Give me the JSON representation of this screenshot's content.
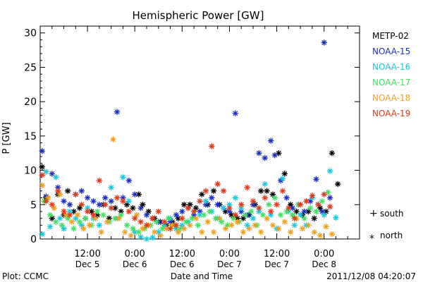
{
  "chart_data": {
    "type": "scatter",
    "title": "Hemispheric Power [GW]",
    "ylabel": "P [GW]",
    "xlabel": "Date and Time",
    "ylim": [
      0,
      31
    ],
    "yticks": [
      0,
      5,
      10,
      15,
      20,
      25,
      30
    ],
    "xlim_hours": [
      0,
      81
    ],
    "xticks": [
      {
        "hour": 12,
        "time": "12:00",
        "date": "Dec 5"
      },
      {
        "hour": 24,
        "time": "0:00",
        "date": "Dec 6"
      },
      {
        "hour": 36,
        "time": "12:00",
        "date": "Dec 6"
      },
      {
        "hour": 48,
        "time": "0:00",
        "date": "Dec 7"
      },
      {
        "hour": 60,
        "time": "12:00",
        "date": "Dec 7"
      },
      {
        "hour": 72,
        "time": "0:00",
        "date": "Dec 8"
      }
    ],
    "footer_left": "Plot: CCMC",
    "footer_right": "2011/12/08 04:20:07",
    "marker_legend": [
      {
        "symbol": "+",
        "label": "south"
      },
      {
        "symbol": "*",
        "label": "north"
      }
    ],
    "series": [
      {
        "name": "METP-02",
        "color": "#000000",
        "points": [
          [
            0.5,
            10.5
          ],
          [
            1.5,
            6
          ],
          [
            3,
            3
          ],
          [
            4.5,
            6.5
          ],
          [
            6,
            3.5
          ],
          [
            7,
            7
          ],
          [
            8.5,
            4
          ],
          [
            10,
            4.5
          ],
          [
            11.5,
            3
          ],
          [
            13,
            4
          ],
          [
            14.5,
            3.5
          ],
          [
            16,
            5
          ],
          [
            17.5,
            3
          ],
          [
            19,
            4.5
          ],
          [
            20.5,
            4
          ],
          [
            22,
            5
          ],
          [
            23.5,
            4.5
          ],
          [
            25,
            6.5
          ],
          [
            26,
            5
          ],
          [
            27.5,
            4
          ],
          [
            29,
            3
          ],
          [
            30.5,
            2.5
          ],
          [
            32,
            2
          ],
          [
            33.5,
            2.5
          ],
          [
            35,
            3
          ],
          [
            36.5,
            5
          ],
          [
            38,
            5
          ],
          [
            39.5,
            4.5
          ],
          [
            41,
            6.5
          ],
          [
            42.5,
            5
          ],
          [
            44,
            7
          ],
          [
            45.5,
            5
          ],
          [
            47,
            4
          ],
          [
            48.5,
            3.5
          ],
          [
            50,
            3
          ],
          [
            51.5,
            3
          ],
          [
            53,
            3.5
          ],
          [
            54.5,
            5
          ],
          [
            56,
            7
          ],
          [
            57.5,
            7
          ],
          [
            59,
            6.5
          ],
          [
            60.5,
            12.5
          ],
          [
            62,
            9.5
          ],
          [
            63.5,
            5
          ],
          [
            65,
            4
          ],
          [
            66.5,
            3.5
          ],
          [
            68,
            4
          ],
          [
            69.5,
            3
          ],
          [
            71,
            4.5
          ],
          [
            72.5,
            4
          ],
          [
            74,
            12.5
          ],
          [
            75.5,
            8
          ]
        ]
      },
      {
        "name": "NOAA-15",
        "color": "#1c2fc4",
        "points": [
          [
            0.5,
            12.8
          ],
          [
            1.5,
            6.2
          ],
          [
            3,
            9.5
          ],
          [
            4.5,
            7.5
          ],
          [
            6,
            5.5
          ],
          [
            7.5,
            5
          ],
          [
            9,
            6.5
          ],
          [
            10.5,
            7
          ],
          [
            12,
            6
          ],
          [
            13.5,
            5.5
          ],
          [
            15,
            5
          ],
          [
            16.5,
            6
          ],
          [
            18,
            5.5
          ],
          [
            19.5,
            18.5
          ],
          [
            21,
            6
          ],
          [
            22.5,
            8.5
          ],
          [
            24,
            6.5
          ],
          [
            25.5,
            4.5
          ],
          [
            27,
            3.5
          ],
          [
            28.5,
            3
          ],
          [
            30,
            2.5
          ],
          [
            31.5,
            2
          ],
          [
            33,
            2.5
          ],
          [
            34.5,
            3.5
          ],
          [
            36,
            4
          ],
          [
            37.5,
            4.5
          ],
          [
            39,
            3.5
          ],
          [
            40.5,
            4
          ],
          [
            42,
            5
          ],
          [
            43.5,
            6
          ],
          [
            45,
            5
          ],
          [
            46.5,
            4.5
          ],
          [
            48,
            4
          ],
          [
            49.5,
            18.3
          ],
          [
            51,
            4
          ],
          [
            52.5,
            3.5
          ],
          [
            54,
            5
          ],
          [
            55.5,
            12.5
          ],
          [
            57,
            11.8
          ],
          [
            58.5,
            14.3
          ],
          [
            59.5,
            12.2
          ],
          [
            61,
            8.5
          ],
          [
            62.5,
            6
          ],
          [
            64,
            4.5
          ],
          [
            65.5,
            5
          ],
          [
            67,
            4
          ],
          [
            68.5,
            5.5
          ],
          [
            70,
            8.7
          ],
          [
            71.5,
            4
          ],
          [
            72,
            28.6
          ],
          [
            73.5,
            6
          ]
        ]
      },
      {
        "name": "NOAA-16",
        "color": "#18c8e0",
        "points": [
          [
            0.5,
            0.7
          ],
          [
            1.5,
            9.8
          ],
          [
            2.5,
            1.8
          ],
          [
            4,
            9
          ],
          [
            5,
            3
          ],
          [
            6,
            1.5
          ],
          [
            7.5,
            4
          ],
          [
            9,
            3
          ],
          [
            10.5,
            2
          ],
          [
            12,
            4.5
          ],
          [
            13.5,
            3
          ],
          [
            15,
            2
          ],
          [
            16.5,
            5
          ],
          [
            18,
            7.5
          ],
          [
            19.5,
            3
          ],
          [
            21,
            9
          ],
          [
            22.5,
            5.5
          ],
          [
            24,
            1
          ],
          [
            25.5,
            0.3
          ],
          [
            27,
            0
          ],
          [
            28.5,
            0.2
          ],
          [
            30,
            1
          ],
          [
            31.5,
            2
          ],
          [
            33,
            3
          ],
          [
            34.5,
            1.5
          ],
          [
            36,
            2
          ],
          [
            37.5,
            2.5
          ],
          [
            39,
            4
          ],
          [
            40.5,
            3.5
          ],
          [
            42,
            5.5
          ],
          [
            43.5,
            4
          ],
          [
            45,
            3
          ],
          [
            46.5,
            4.5
          ],
          [
            48,
            5
          ],
          [
            49.5,
            6
          ],
          [
            51,
            4.5
          ],
          [
            52.5,
            2
          ],
          [
            54,
            3
          ],
          [
            55.5,
            4
          ],
          [
            57,
            8
          ],
          [
            58.5,
            3.5
          ],
          [
            60,
            1.5
          ],
          [
            61.5,
            8.8
          ],
          [
            63,
            4
          ],
          [
            64.5,
            2
          ],
          [
            66,
            3.5
          ],
          [
            67.5,
            2
          ],
          [
            69,
            6
          ],
          [
            70.5,
            5
          ],
          [
            72,
            3.5
          ],
          [
            73.5,
            9.9
          ],
          [
            75,
            3.1
          ]
        ]
      },
      {
        "name": "NOAA-17",
        "color": "#40e060",
        "points": [
          [
            1,
            5.5
          ],
          [
            2.5,
            3.5
          ],
          [
            4,
            2.5
          ],
          [
            5.5,
            2
          ],
          [
            7,
            3
          ],
          [
            8.5,
            1.5
          ],
          [
            10,
            2.5
          ],
          [
            11.5,
            3
          ],
          [
            13,
            2
          ],
          [
            14.5,
            4
          ],
          [
            16,
            3.5
          ],
          [
            17.5,
            2.5
          ],
          [
            19,
            3
          ],
          [
            20.5,
            3.5
          ],
          [
            22,
            2
          ],
          [
            23.5,
            1.5
          ],
          [
            25,
            1
          ],
          [
            26.5,
            1.5
          ],
          [
            28,
            2
          ],
          [
            29.5,
            2.5
          ],
          [
            31,
            1.5
          ],
          [
            32.5,
            3
          ],
          [
            34,
            2
          ],
          [
            35.5,
            1.5
          ],
          [
            37,
            2.5
          ],
          [
            38.5,
            3
          ],
          [
            40,
            2
          ],
          [
            41.5,
            3.5
          ],
          [
            43,
            4
          ],
          [
            44.5,
            3
          ],
          [
            46,
            2.5
          ],
          [
            47.5,
            2
          ],
          [
            49,
            3
          ],
          [
            50.5,
            2.5
          ],
          [
            52,
            3.5
          ],
          [
            53.5,
            4
          ],
          [
            55,
            2
          ],
          [
            56.5,
            3.5
          ],
          [
            58,
            5
          ],
          [
            59.5,
            6
          ],
          [
            61,
            3.5
          ],
          [
            62.5,
            4
          ],
          [
            64,
            3.5
          ],
          [
            65.5,
            5
          ],
          [
            67,
            3
          ],
          [
            68.5,
            4.5
          ],
          [
            70,
            4
          ],
          [
            71.5,
            5.5
          ],
          [
            73,
            6.8
          ]
        ]
      },
      {
        "name": "NOAA-18",
        "color": "#f0a020",
        "points": [
          [
            0.5,
            7.8
          ],
          [
            2,
            6
          ],
          [
            3.5,
            4.5
          ],
          [
            5,
            6.5
          ],
          [
            6.5,
            3.5
          ],
          [
            8,
            2.5
          ],
          [
            9.5,
            3.5
          ],
          [
            11,
            1.5
          ],
          [
            12.5,
            2
          ],
          [
            14,
            3
          ],
          [
            15.5,
            1
          ],
          [
            17,
            2.5
          ],
          [
            18.5,
            14.5
          ],
          [
            20,
            3
          ],
          [
            21.5,
            1
          ],
          [
            23,
            0.5
          ],
          [
            24.5,
            3.5
          ],
          [
            26,
            1.5
          ],
          [
            27.5,
            2
          ],
          [
            29,
            1
          ],
          [
            30.5,
            0.5
          ],
          [
            32,
            1.5
          ],
          [
            33.5,
            2
          ],
          [
            35,
            1
          ],
          [
            36.5,
            1.5
          ],
          [
            38,
            2
          ],
          [
            39.5,
            3
          ],
          [
            41,
            1
          ],
          [
            42.5,
            2.5
          ],
          [
            44,
            1
          ],
          [
            45.5,
            3
          ],
          [
            47,
            1.5
          ],
          [
            48.5,
            2
          ],
          [
            50,
            2.5
          ],
          [
            51.5,
            1
          ],
          [
            53,
            1.5
          ],
          [
            54.5,
            2
          ],
          [
            56,
            1
          ],
          [
            57.5,
            3
          ],
          [
            59,
            2
          ],
          [
            60.5,
            1.5
          ],
          [
            62,
            2.5
          ],
          [
            63.5,
            1
          ],
          [
            65,
            3
          ],
          [
            66.5,
            1.5
          ],
          [
            68,
            2
          ],
          [
            69.5,
            1
          ],
          [
            71,
            0.5
          ],
          [
            72.5,
            1.8
          ],
          [
            74,
            0.7
          ]
        ]
      },
      {
        "name": "NOAA-19",
        "color": "#e03818",
        "points": [
          [
            0.5,
            9.3
          ],
          [
            1.5,
            5.5
          ],
          [
            3,
            5
          ],
          [
            4.5,
            7
          ],
          [
            6,
            4
          ],
          [
            7.5,
            3.5
          ],
          [
            9,
            6.5
          ],
          [
            10.5,
            5
          ],
          [
            12,
            4
          ],
          [
            13.5,
            3.5
          ],
          [
            15,
            8.5
          ],
          [
            16.5,
            5
          ],
          [
            18,
            4.5
          ],
          [
            19.5,
            6
          ],
          [
            21,
            5.5
          ],
          [
            22.5,
            4
          ],
          [
            24,
            3
          ],
          [
            25.5,
            2.5
          ],
          [
            27,
            2
          ],
          [
            28.5,
            3
          ],
          [
            30,
            4
          ],
          [
            31.5,
            2.5
          ],
          [
            33,
            1.5
          ],
          [
            34.5,
            2
          ],
          [
            36,
            3
          ],
          [
            37.5,
            4.5
          ],
          [
            39,
            4
          ],
          [
            40.5,
            5.5
          ],
          [
            42,
            7
          ],
          [
            43.5,
            13.5
          ],
          [
            45,
            8
          ],
          [
            46.5,
            7
          ],
          [
            48,
            4.5
          ],
          [
            49.5,
            3.5
          ],
          [
            51,
            5
          ],
          [
            52.5,
            7.5
          ],
          [
            54,
            5.5
          ],
          [
            55.5,
            4.5
          ],
          [
            57,
            6
          ],
          [
            58.5,
            4
          ],
          [
            60,
            5
          ],
          [
            61.5,
            7
          ],
          [
            63,
            4.5
          ],
          [
            64.5,
            3
          ],
          [
            66,
            5
          ],
          [
            67.5,
            5.5
          ],
          [
            69,
            6.3
          ],
          [
            70.5,
            5
          ],
          [
            72,
            6.5
          ],
          [
            73.5,
            4.7
          ]
        ]
      }
    ]
  }
}
